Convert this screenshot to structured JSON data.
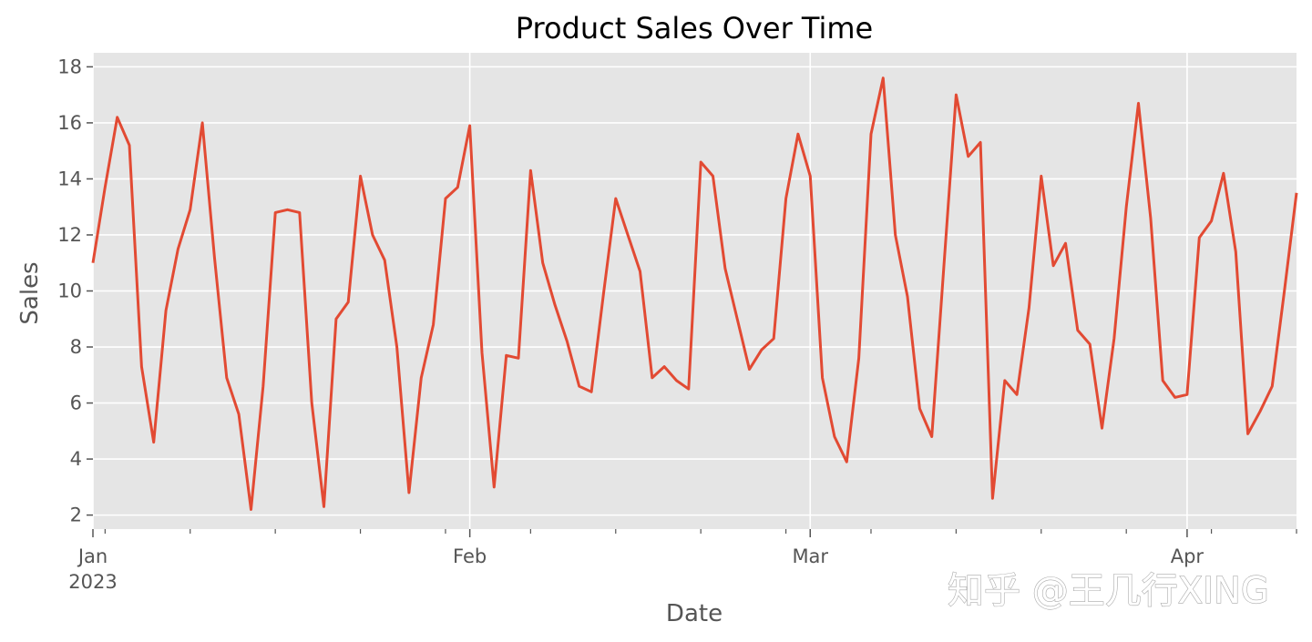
{
  "watermark": "知乎 @王几行XING",
  "chart_data": {
    "type": "line",
    "title": "Product Sales Over Time",
    "xlabel": "Date",
    "ylabel": "Sales",
    "grid": true,
    "ylim": [
      1.5,
      18.5
    ],
    "yticks": [
      2,
      4,
      6,
      8,
      10,
      12,
      14,
      16,
      18
    ],
    "xlim": [
      "2023-01-01",
      "2023-04-10"
    ],
    "xticks": [
      {
        "date": "2023-01-01",
        "label": "Jan",
        "sublabel": "2023"
      },
      {
        "date": "2023-02-01",
        "label": "Feb",
        "sublabel": ""
      },
      {
        "date": "2023-03-01",
        "label": "Mar",
        "sublabel": ""
      },
      {
        "date": "2023-04-01",
        "label": "Apr",
        "sublabel": ""
      }
    ],
    "series": [
      {
        "color": "#E24A33",
        "start_date": "2023-01-01",
        "values": [
          11.0,
          13.7,
          16.2,
          15.2,
          7.3,
          4.6,
          9.3,
          11.5,
          12.9,
          16.0,
          11.2,
          6.9,
          5.6,
          2.2,
          6.6,
          12.8,
          12.9,
          12.8,
          6.0,
          2.3,
          9.0,
          9.6,
          14.1,
          12.0,
          11.1,
          8.0,
          2.8,
          6.9,
          8.8,
          13.3,
          13.7,
          15.9,
          7.8,
          3.0,
          7.7,
          7.6,
          14.3,
          11.0,
          9.5,
          8.2,
          6.6,
          6.4,
          9.9,
          13.3,
          12.0,
          10.7,
          6.9,
          7.3,
          6.8,
          6.5,
          14.6,
          14.1,
          10.8,
          9.0,
          7.2,
          7.9,
          8.3,
          13.3,
          15.6,
          14.1,
          6.9,
          4.8,
          3.9,
          7.6,
          15.6,
          17.6,
          12.0,
          9.8,
          5.8,
          4.8,
          10.9,
          17.0,
          14.8,
          15.3,
          2.6,
          6.8,
          6.3,
          9.4,
          14.1,
          10.9,
          11.7,
          8.6,
          8.1,
          5.1,
          8.3,
          13.0,
          16.7,
          12.6,
          6.8,
          6.2,
          6.3,
          11.9,
          12.5,
          14.2,
          11.4,
          4.9,
          5.7,
          6.6,
          10.0,
          13.5
        ]
      }
    ]
  }
}
